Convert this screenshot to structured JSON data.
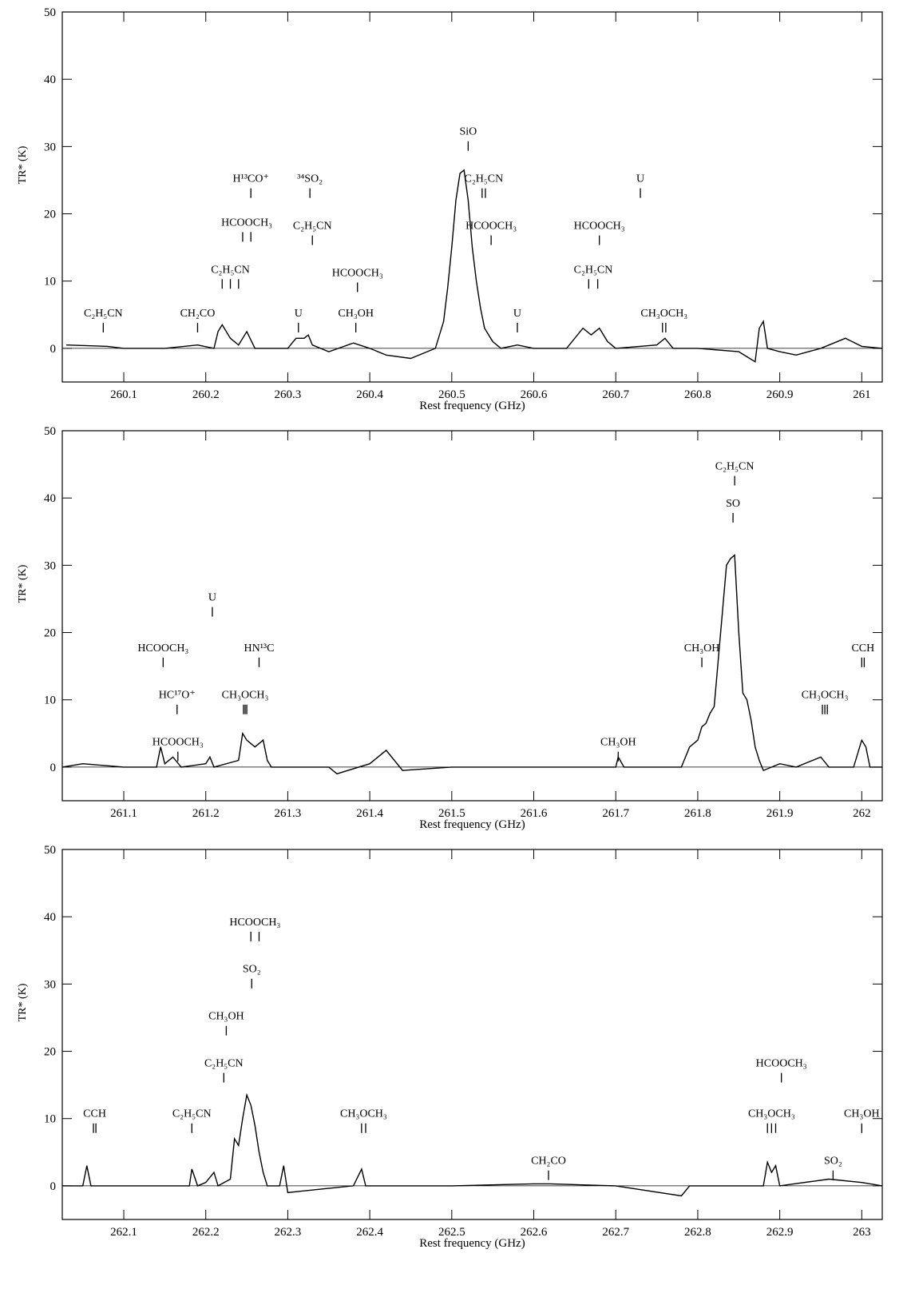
{
  "chart_data": [
    {
      "type": "line",
      "color": "#000000",
      "xlabel": "Rest frequency (GHz)",
      "ylabel": "TR* (K)",
      "xlim": [
        260.025,
        261.025
      ],
      "ylim": [
        -5,
        50
      ],
      "xticks": [
        260.1,
        260.2,
        260.3,
        260.4,
        260.5,
        260.6,
        260.7,
        260.8,
        260.9,
        261
      ],
      "yticks": [
        0,
        10,
        20,
        30,
        40,
        50
      ],
      "x": [
        260.03,
        260.08,
        260.1,
        260.15,
        260.19,
        260.21,
        260.215,
        260.22,
        260.23,
        260.24,
        260.25,
        260.26,
        260.3,
        260.31,
        260.32,
        260.325,
        260.33,
        260.35,
        260.38,
        260.4,
        260.42,
        260.45,
        260.47,
        260.48,
        260.49,
        260.495,
        260.5,
        260.505,
        260.51,
        260.515,
        260.52,
        260.525,
        260.53,
        260.535,
        260.54,
        260.55,
        260.56,
        260.58,
        260.6,
        260.64,
        260.66,
        260.67,
        260.68,
        260.69,
        260.7,
        260.75,
        260.76,
        260.77,
        260.8,
        260.85,
        260.87,
        260.875,
        260.88,
        260.885,
        260.9,
        260.92,
        260.95,
        260.98,
        261.0,
        261.025
      ],
      "values": [
        0.5,
        0.3,
        0,
        0,
        0.5,
        0,
        2.5,
        3.5,
        1.5,
        0.5,
        2.5,
        0,
        0,
        1.5,
        1.5,
        2,
        0.5,
        -0.5,
        0.8,
        0,
        -1,
        -1.5,
        -0.5,
        0,
        4,
        9,
        15,
        22,
        26,
        26.5,
        22,
        15,
        10,
        6,
        3,
        1,
        0,
        0.5,
        0,
        0,
        3,
        2,
        3,
        1,
        0,
        0.5,
        1.5,
        0,
        0,
        -0.5,
        -2,
        3,
        4,
        0,
        -0.5,
        -1,
        0,
        1.5,
        0.3,
        0
      ],
      "annotations": [
        {
          "text": "C₂H₅CN",
          "x": [
            260.075
          ],
          "y": 4.5
        },
        {
          "text": "CH₂CO",
          "x": [
            260.19
          ],
          "y": 4.5
        },
        {
          "text": "C₂H₅CN",
          "x": [
            260.22,
            260.23,
            260.24
          ],
          "y": 11
        },
        {
          "text": "HCOOCH₃",
          "x": [
            260.245,
            260.255
          ],
          "y": 18
        },
        {
          "text": "H¹³CO⁺",
          "x": [
            260.255
          ],
          "y": 24.5
        },
        {
          "text": "³⁴SO₂",
          "x": [
            260.327
          ],
          "y": 24.5
        },
        {
          "text": "C₂H₅CN",
          "x": [
            260.33
          ],
          "y": 17.5
        },
        {
          "text": "U",
          "x": [
            260.313
          ],
          "y": 4.5
        },
        {
          "text": "HCOOCH₃",
          "x": [
            260.385
          ],
          "y": 10.5
        },
        {
          "text": "CH₃OH",
          "x": [
            260.383
          ],
          "y": 4.5
        },
        {
          "text": "SiO",
          "x": [
            260.52
          ],
          "y": 31.5
        },
        {
          "text": "C₂H₅CN",
          "x": [
            260.537,
            260.541
          ],
          "y": 24.5
        },
        {
          "text": "HCOOCH₃",
          "x": [
            260.548
          ],
          "y": 17.5
        },
        {
          "text": "U",
          "x": [
            260.58
          ],
          "y": 4.5
        },
        {
          "text": "HCOOCH₃",
          "x": [
            260.68
          ],
          "y": 17.5
        },
        {
          "text": "C₂H₅CN",
          "x": [
            260.667,
            260.678
          ],
          "y": 11
        },
        {
          "text": "U",
          "x": [
            260.73
          ],
          "y": 24.5
        },
        {
          "text": "CH₃OCH₃",
          "x": [
            260.757,
            260.761
          ],
          "y": 4.5
        }
      ]
    },
    {
      "type": "line",
      "color": "#000000",
      "xlabel": "Rest frequency (GHz)",
      "ylabel": "TR* (K)",
      "xlim": [
        261.025,
        262.025
      ],
      "ylim": [
        -5,
        50
      ],
      "xticks": [
        261.1,
        261.2,
        261.3,
        261.4,
        261.5,
        261.6,
        261.7,
        261.8,
        261.9,
        262
      ],
      "yticks": [
        0,
        10,
        20,
        30,
        40,
        50
      ],
      "x": [
        261.025,
        261.05,
        261.1,
        261.14,
        261.145,
        261.15,
        261.16,
        261.17,
        261.2,
        261.205,
        261.21,
        261.24,
        261.245,
        261.25,
        261.26,
        261.27,
        261.275,
        261.28,
        261.35,
        261.36,
        261.4,
        261.42,
        261.44,
        261.5,
        261.7,
        261.703,
        261.71,
        261.78,
        261.79,
        261.8,
        261.805,
        261.81,
        261.815,
        261.82,
        261.835,
        261.84,
        261.845,
        261.85,
        261.855,
        261.86,
        261.865,
        261.87,
        261.875,
        261.88,
        261.9,
        261.92,
        261.95,
        261.96,
        261.99,
        262.0,
        262.005,
        262.01,
        262.025
      ],
      "values": [
        0,
        0.5,
        0,
        0,
        3,
        0.5,
        1.5,
        0,
        0.5,
        1.5,
        0,
        1,
        5,
        4,
        3,
        4,
        1,
        0,
        0,
        -1,
        0.5,
        2.5,
        -0.5,
        0,
        0,
        1.5,
        0,
        0,
        3,
        4,
        6,
        6.5,
        8,
        9,
        30,
        31,
        31.5,
        20,
        11,
        10,
        7,
        3,
        1,
        -0.5,
        0.5,
        0,
        1.5,
        0,
        0,
        4,
        3,
        0,
        0
      ],
      "annotations": [
        {
          "text": "HCOOCH₃",
          "x": [
            261.166
          ],
          "y": 3
        },
        {
          "text": "HC¹⁷O⁺",
          "x": [
            261.165
          ],
          "y": 10
        },
        {
          "text": "HCOOCH₃",
          "x": [
            261.148
          ],
          "y": 17
        },
        {
          "text": "U",
          "x": [
            261.208
          ],
          "y": 24.5
        },
        {
          "text": "HN¹³C",
          "x": [
            261.265
          ],
          "y": 17
        },
        {
          "text": "CH₃OCH₃",
          "x": [
            261.246,
            261.248,
            261.25
          ],
          "y": 10
        },
        {
          "text": "CH₃OH",
          "x": [
            261.703
          ],
          "y": 3
        },
        {
          "text": "CH₃OH",
          "x": [
            261.805
          ],
          "y": 17
        },
        {
          "text": "SO",
          "x": [
            261.843
          ],
          "y": 38.5
        },
        {
          "text": "C₂H₅CN",
          "x": [
            261.845
          ],
          "y": 44
        },
        {
          "text": "CH₃OCH₃",
          "x": [
            261.952,
            261.955,
            261.958
          ],
          "y": 10
        },
        {
          "text": "CCH",
          "x": [
            262.0,
            262.003
          ],
          "y": 17
        }
      ]
    },
    {
      "type": "line",
      "color": "#000000",
      "xlabel": "Rest frequency (GHz)",
      "ylabel": "TR* (K)",
      "xlim": [
        262.025,
        263.025
      ],
      "ylim": [
        -5,
        50
      ],
      "xticks": [
        262.1,
        262.2,
        262.3,
        262.4,
        262.5,
        262.6,
        262.7,
        262.8,
        262.9,
        263
      ],
      "yticks": [
        0,
        10,
        20,
        30,
        40,
        50
      ],
      "x": [
        262.025,
        262.05,
        262.055,
        262.06,
        262.18,
        262.183,
        262.19,
        262.2,
        262.21,
        262.215,
        262.23,
        262.235,
        262.24,
        262.245,
        262.25,
        262.255,
        262.26,
        262.265,
        262.27,
        262.275,
        262.29,
        262.295,
        262.3,
        262.34,
        262.38,
        262.39,
        262.395,
        262.5,
        262.6,
        262.62,
        262.7,
        262.78,
        262.79,
        262.88,
        262.885,
        262.89,
        262.895,
        262.9,
        262.96,
        263.0,
        263.025
      ],
      "values": [
        0,
        0,
        3,
        0,
        0,
        2.5,
        0,
        0.5,
        2,
        0,
        1,
        7,
        6,
        10,
        13.5,
        12,
        9,
        5,
        2,
        0,
        0,
        3,
        -1,
        -0.5,
        0,
        2.5,
        0,
        0,
        0.3,
        0.3,
        0,
        -1.5,
        0,
        0,
        3.5,
        2,
        3,
        0,
        1,
        0.5,
        0
      ],
      "annotations": [
        {
          "text": "CCH",
          "x": [
            262.063,
            262.066
          ],
          "y": 10
        },
        {
          "text": "C₂H₅CN",
          "x": [
            262.183
          ],
          "y": 10
        },
        {
          "text": "C₂H₅CN",
          "x": [
            262.222
          ],
          "y": 17.5
        },
        {
          "text": "CH₃OH",
          "x": [
            262.225
          ],
          "y": 24.5
        },
        {
          "text": "SO₂",
          "x": [
            262.256
          ],
          "y": 31.5
        },
        {
          "text": "HCOOCH₃",
          "x": [
            262.255,
            262.265
          ],
          "y": 38.5
        },
        {
          "text": "CH₃OCH₃",
          "x": [
            262.39,
            262.395
          ],
          "y": 10
        },
        {
          "text": "CH₂CO",
          "x": [
            262.618
          ],
          "y": 3
        },
        {
          "text": "CH₃OCH₃",
          "x": [
            262.885,
            262.89,
            262.895
          ],
          "y": 10
        },
        {
          "text": "HCOOCH₃",
          "x": [
            262.902
          ],
          "y": 17.5
        },
        {
          "text": "SO₂",
          "x": [
            262.965
          ],
          "y": 3
        },
        {
          "text": "CH₃OH",
          "x": [
            263.0
          ],
          "y": 10
        }
      ]
    }
  ]
}
